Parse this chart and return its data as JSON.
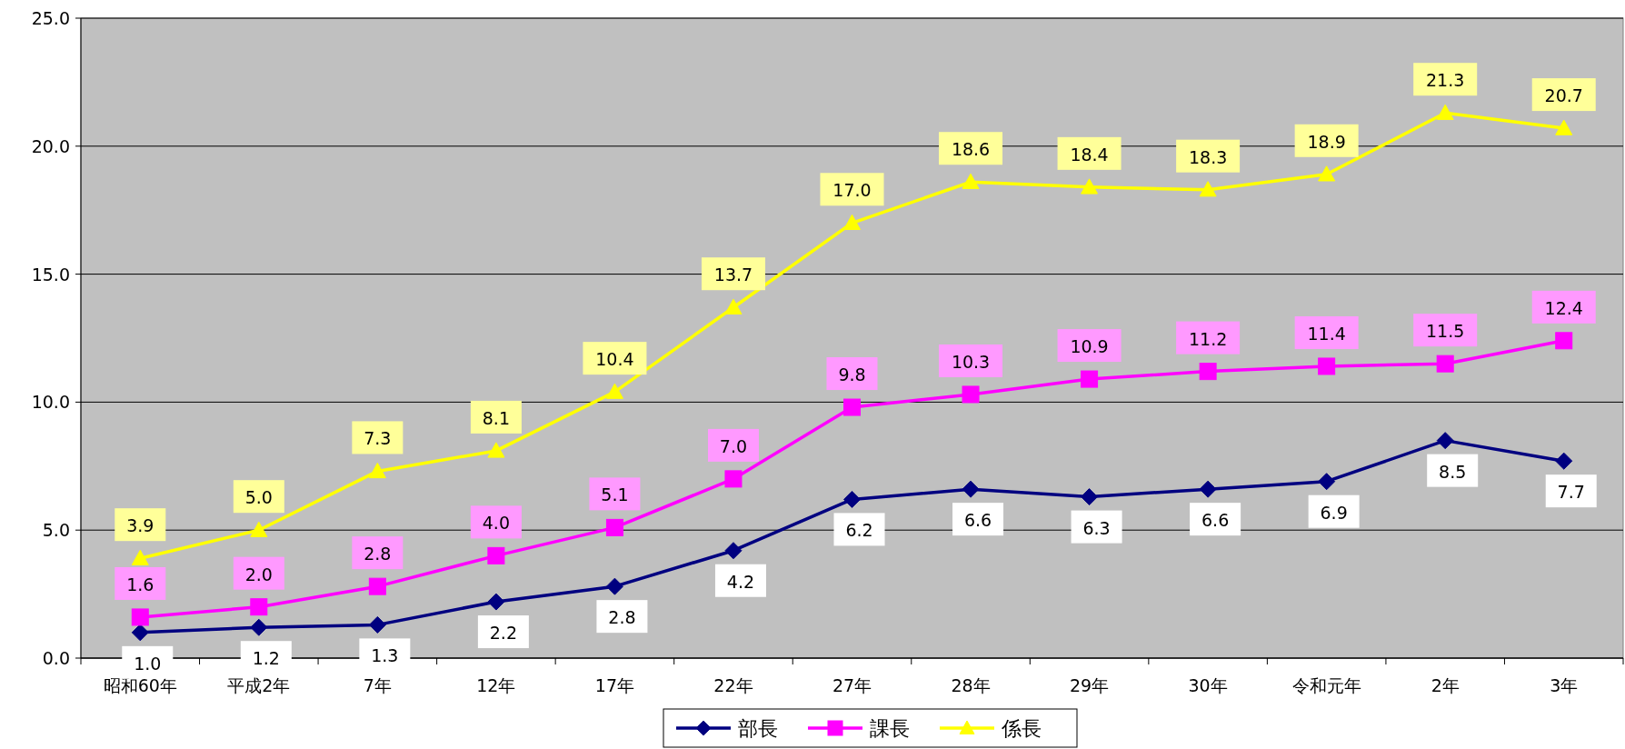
{
  "chart_data": {
    "type": "line",
    "categories": [
      "昭和60年",
      "平成2年",
      "7年",
      "12年",
      "17年",
      "22年",
      "27年",
      "28年",
      "29年",
      "30年",
      "令和元年",
      "2年",
      "3年"
    ],
    "series": [
      {
        "name": "部長",
        "color": "#000080",
        "marker": "diamond",
        "values": [
          1.0,
          1.2,
          1.3,
          2.2,
          2.8,
          4.2,
          6.2,
          6.6,
          6.3,
          6.6,
          6.9,
          8.5,
          7.7
        ],
        "value_labels": [
          "1.0",
          "1.2",
          "1.3",
          "2.2",
          "2.8",
          "4.2",
          "6.2",
          "6.6",
          "6.3",
          "6.6",
          "6.9",
          "8.5",
          "7.7"
        ]
      },
      {
        "name": "課長",
        "color": "#ff00ff",
        "marker": "square",
        "values": [
          1.6,
          2.0,
          2.8,
          4.0,
          5.1,
          7.0,
          9.8,
          10.3,
          10.9,
          11.2,
          11.4,
          11.5,
          12.4
        ],
        "value_labels": [
          "1.6",
          "2.0",
          "2.8",
          "4.0",
          "5.1",
          "7.0",
          "9.8",
          "10.3",
          "10.9",
          "11.2",
          "11.4",
          "11.5",
          "12.4"
        ]
      },
      {
        "name": "係長",
        "color": "#ffff00",
        "marker": "triangle",
        "values": [
          3.9,
          5.0,
          7.3,
          8.1,
          10.4,
          13.7,
          17.0,
          18.6,
          18.4,
          18.3,
          18.9,
          21.3,
          20.7
        ],
        "value_labels": [
          "3.9",
          "5.0",
          "7.3",
          "8.1",
          "10.4",
          "13.7",
          "17.0",
          "18.6",
          "18.4",
          "18.3",
          "18.9",
          "21.3",
          "20.7"
        ]
      }
    ],
    "ylim": [
      0,
      25
    ],
    "yticks": [
      {
        "value": 0,
        "label": "0.0"
      },
      {
        "value": 5,
        "label": "5.0"
      },
      {
        "value": 10,
        "label": "10.0"
      },
      {
        "value": 15,
        "label": "15.0"
      },
      {
        "value": 20,
        "label": "20.0"
      },
      {
        "value": 25,
        "label": "25.0"
      }
    ],
    "grid": "y",
    "legend": "bottom"
  }
}
